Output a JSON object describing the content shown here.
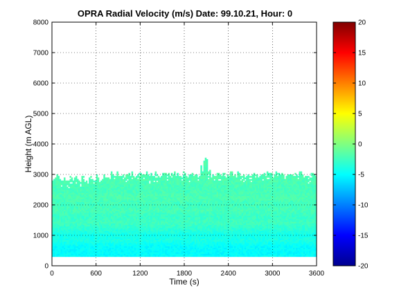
{
  "chart_data": {
    "type": "heatmap",
    "title": "OPRA Radial Velocity (m/s)  Date: 99.10.21, Hour: 0",
    "xlabel": "Time (s)",
    "ylabel": "Height (m AGL)",
    "xlim": [
      0,
      3600
    ],
    "ylim": [
      0,
      8000
    ],
    "xticks": [
      "0",
      "600",
      "1200",
      "1800",
      "2400",
      "3000",
      "3600"
    ],
    "yticks": [
      "0",
      "1000",
      "2000",
      "3000",
      "4000",
      "5000",
      "6000",
      "7000",
      "8000"
    ],
    "grid": true,
    "colorbar": {
      "range": [
        -20,
        20
      ],
      "ticks": [
        "-20",
        "-15",
        "-10",
        "-5",
        "0",
        "5",
        "10",
        "15",
        "20"
      ],
      "colormap": "jet"
    },
    "data_region": {
      "x_range": [
        0,
        3600
      ],
      "bottom_height": 300,
      "typical_top_height": 3000,
      "max_top_height": 3600
    },
    "velocity_profile": [
      {
        "height": 300,
        "velocity": -5.0
      },
      {
        "height": 600,
        "velocity": -5.0
      },
      {
        "height": 800,
        "velocity": -4.0
      },
      {
        "height": 1000,
        "velocity": -4.2
      },
      {
        "height": 1200,
        "velocity": -3.2
      },
      {
        "height": 1400,
        "velocity": -2.5
      },
      {
        "height": 1600,
        "velocity": -2.8
      },
      {
        "height": 1800,
        "velocity": -2.2
      },
      {
        "height": 2000,
        "velocity": -2.5
      },
      {
        "height": 2200,
        "velocity": -2.0
      },
      {
        "height": 2500,
        "velocity": -2.3
      },
      {
        "height": 2800,
        "velocity": -2.0
      },
      {
        "height": 3000,
        "velocity": -2.0
      }
    ]
  }
}
